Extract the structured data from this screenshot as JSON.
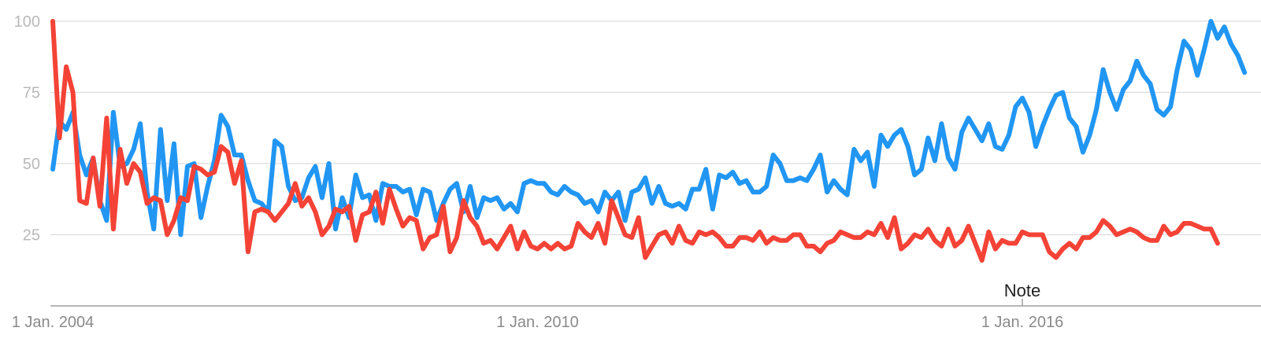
{
  "chart_data": {
    "type": "line",
    "ylim": [
      0,
      100
    ],
    "y_ticks": [
      {
        "value": 100,
        "label": "100"
      },
      {
        "value": 75,
        "label": "75"
      },
      {
        "value": 50,
        "label": "50"
      },
      {
        "value": 25,
        "label": "25"
      }
    ],
    "x_ticks": [
      {
        "year": 2004.0,
        "label": "1 Jan. 2004"
      },
      {
        "year": 2010.0,
        "label": "1 Jan. 2010"
      },
      {
        "year": 2016.0,
        "label": "1 Jan. 2016"
      }
    ],
    "annotation": {
      "year": 2016.0,
      "label": "Note"
    },
    "x_start_year": 2004.0,
    "x_step_months": 1,
    "grid": true,
    "series": [
      {
        "color": "#2196f3",
        "values": [
          48,
          65,
          62,
          68,
          53,
          46,
          52,
          37,
          30,
          68,
          49,
          50,
          55,
          64,
          40,
          27,
          62,
          37,
          57,
          25,
          49,
          50,
          31,
          42,
          51,
          67,
          63,
          53,
          53,
          44,
          37,
          36,
          33,
          58,
          56,
          42,
          37,
          38,
          45,
          49,
          38,
          50,
          27,
          38,
          31,
          46,
          38,
          39,
          30,
          43,
          42,
          42,
          40,
          41,
          32,
          41,
          40,
          30,
          36,
          41,
          43,
          33,
          42,
          31,
          38,
          37,
          38,
          34,
          36,
          33,
          43,
          44,
          43,
          43,
          40,
          39,
          42,
          40,
          39,
          36,
          37,
          33,
          40,
          37,
          40,
          30,
          40,
          41,
          45,
          36,
          42,
          36,
          35,
          36,
          34,
          41,
          41,
          48,
          34,
          46,
          45,
          47,
          43,
          44,
          40,
          40,
          42,
          53,
          50,
          44,
          44,
          45,
          44,
          48,
          53,
          40,
          44,
          41,
          39,
          55,
          51,
          54,
          42,
          60,
          56,
          60,
          62,
          56,
          46,
          48,
          59,
          51,
          64,
          52,
          48,
          61,
          66,
          62,
          58,
          64,
          56,
          55,
          60,
          70,
          73,
          68,
          56,
          63,
          69,
          74,
          75,
          66,
          63,
          54,
          60,
          69,
          83,
          75,
          69,
          76,
          79,
          86,
          81,
          78,
          69,
          67,
          70,
          83,
          93,
          90,
          81,
          90,
          100,
          94,
          98,
          92,
          88,
          82
        ]
      },
      {
        "color": "#f44336",
        "values": [
          100,
          59,
          84,
          75,
          37,
          36,
          52,
          35,
          66,
          27,
          55,
          43,
          50,
          47,
          36,
          38,
          37,
          25,
          30,
          38,
          37,
          49,
          48,
          46,
          47,
          56,
          54,
          43,
          51,
          19,
          33,
          34,
          33,
          30,
          33,
          36,
          43,
          35,
          38,
          33,
          25,
          28,
          34,
          33,
          35,
          23,
          32,
          33,
          40,
          29,
          41,
          34,
          28,
          31,
          30,
          20,
          24,
          25,
          35,
          19,
          24,
          37,
          31,
          28,
          22,
          23,
          20,
          24,
          28,
          20,
          26,
          21,
          20,
          22,
          20,
          22,
          20,
          21,
          29,
          26,
          24,
          29,
          22,
          37,
          31,
          25,
          24,
          31,
          17,
          21,
          25,
          26,
          22,
          28,
          23,
          22,
          26,
          25,
          26,
          24,
          21,
          21,
          24,
          24,
          23,
          26,
          22,
          24,
          23,
          23,
          25,
          25,
          21,
          21,
          19,
          22,
          23,
          26,
          25,
          24,
          24,
          26,
          25,
          29,
          24,
          31,
          20,
          22,
          25,
          24,
          27,
          23,
          21,
          27,
          21,
          23,
          28,
          22,
          16,
          26,
          20,
          23,
          22,
          22,
          26,
          25,
          25,
          25,
          19,
          17,
          20,
          22,
          20,
          24,
          24,
          26,
          30,
          28,
          25,
          26,
          27,
          26,
          24,
          23,
          23,
          28,
          25,
          26,
          29,
          29,
          28,
          27,
          27,
          22
        ]
      }
    ]
  }
}
